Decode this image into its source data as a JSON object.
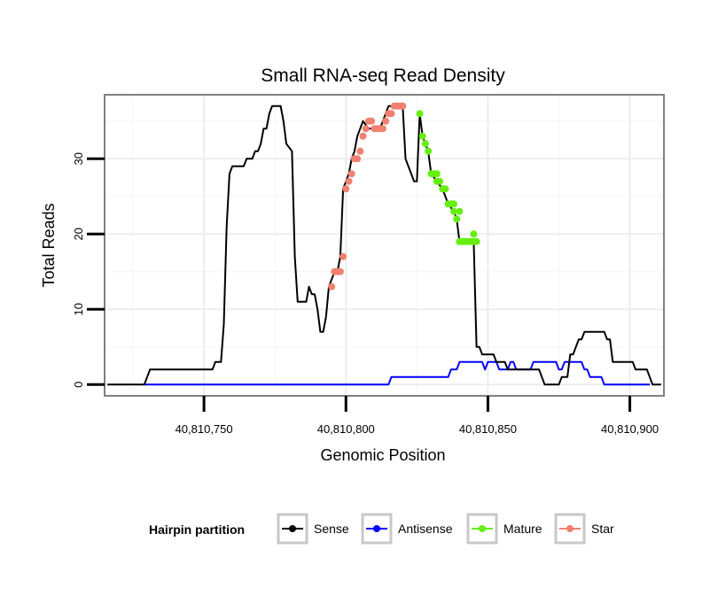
{
  "chart_data": {
    "type": "line",
    "title": "Small RNA-seq Read Density",
    "xlabel": "Genomic Position",
    "ylabel": "Total Reads",
    "xlim": [
      40810715,
      40810912
    ],
    "ylim": [
      -1.5,
      38.5
    ],
    "x_ticks": [
      40810750,
      40810800,
      40810850,
      40810900
    ],
    "x_tick_labels": [
      "40,810,750",
      "40,810,800",
      "40,810,850",
      "40,810,900"
    ],
    "y_ticks": [
      0,
      10,
      20,
      30
    ],
    "y_tick_labels": [
      "0",
      "10",
      "20",
      "30"
    ],
    "grid": true,
    "legend": {
      "title": "Hairpin partition",
      "position": "bottom",
      "entries": [
        "Sense",
        "Antisense",
        "Mature",
        "Star"
      ]
    },
    "series": [
      {
        "name": "Sense",
        "color": "#000000",
        "style": "line",
        "points": [
          [
            40810716,
            0
          ],
          [
            40810729,
            0
          ],
          [
            40810731,
            2
          ],
          [
            40810753,
            2
          ],
          [
            40810754,
            3
          ],
          [
            40810756,
            3
          ],
          [
            40810757,
            8
          ],
          [
            40810758,
            21
          ],
          [
            40810759,
            28
          ],
          [
            40810760,
            29
          ],
          [
            40810764,
            29
          ],
          [
            40810765,
            30
          ],
          [
            40810767,
            30
          ],
          [
            40810768,
            31
          ],
          [
            40810769,
            31
          ],
          [
            40810770,
            32
          ],
          [
            40810771,
            34
          ],
          [
            40810772,
            34
          ],
          [
            40810773,
            36
          ],
          [
            40810774,
            37
          ],
          [
            40810777,
            37
          ],
          [
            40810778,
            35
          ],
          [
            40810779,
            32
          ],
          [
            40810781,
            31
          ],
          [
            40810782,
            17
          ],
          [
            40810783,
            11
          ],
          [
            40810786,
            11
          ],
          [
            40810787,
            13
          ],
          [
            40810788,
            12
          ],
          [
            40810789,
            12
          ],
          [
            40810790,
            10
          ],
          [
            40810791,
            7
          ],
          [
            40810792,
            7
          ],
          [
            40810793,
            9
          ],
          [
            40810794,
            13
          ],
          [
            40810795,
            14
          ],
          [
            40810796,
            15
          ],
          [
            40810797,
            15
          ],
          [
            40810798,
            17
          ],
          [
            40810799,
            26
          ],
          [
            40810800,
            27
          ],
          [
            40810801,
            28
          ],
          [
            40810802,
            30
          ],
          [
            40810803,
            31
          ],
          [
            40810804,
            33
          ],
          [
            40810805,
            34
          ],
          [
            40810806,
            35
          ],
          [
            40810808,
            34
          ],
          [
            40810812,
            34
          ],
          [
            40810813,
            35
          ],
          [
            40810814,
            36
          ],
          [
            40810815,
            37
          ],
          [
            40810820,
            37
          ],
          [
            40810821,
            30
          ],
          [
            40810822,
            29
          ],
          [
            40810823,
            28
          ],
          [
            40810824,
            27
          ],
          [
            40810825,
            27
          ],
          [
            40810826,
            36
          ],
          [
            40810827,
            33
          ],
          [
            40810828,
            32
          ],
          [
            40810829,
            31
          ],
          [
            40810830,
            28
          ],
          [
            40810832,
            27
          ],
          [
            40810834,
            26
          ],
          [
            40810836,
            24
          ],
          [
            40810838,
            23
          ],
          [
            40810839,
            22
          ],
          [
            40810840,
            19
          ],
          [
            40810843,
            19
          ],
          [
            40810844,
            19
          ],
          [
            40810845,
            19
          ],
          [
            40810846,
            5
          ],
          [
            40810847,
            5
          ],
          [
            40810848,
            4
          ],
          [
            40810852,
            4
          ],
          [
            40810853,
            3
          ],
          [
            40810856,
            3
          ],
          [
            40810857,
            2
          ],
          [
            40810868,
            2
          ],
          [
            40810869,
            1
          ],
          [
            40810870,
            0
          ],
          [
            40810875,
            0
          ],
          [
            40810876,
            1
          ],
          [
            40810878,
            1
          ],
          [
            40810879,
            4
          ],
          [
            40810880,
            4
          ],
          [
            40810881,
            5
          ],
          [
            40810882,
            6
          ],
          [
            40810883,
            6
          ],
          [
            40810884,
            7
          ],
          [
            40810891,
            7
          ],
          [
            40810892,
            6
          ],
          [
            40810893,
            6
          ],
          [
            40810894,
            3
          ],
          [
            40810901,
            3
          ],
          [
            40810902,
            2
          ],
          [
            40810906,
            2
          ],
          [
            40810907,
            1
          ],
          [
            40810908,
            0
          ],
          [
            40810911,
            0
          ]
        ]
      },
      {
        "name": "Antisense",
        "color": "#0000ff",
        "style": "line",
        "points": [
          [
            40810729,
            0
          ],
          [
            40810815,
            0
          ],
          [
            40810816,
            1
          ],
          [
            40810836,
            1
          ],
          [
            40810837,
            2
          ],
          [
            40810839,
            2
          ],
          [
            40810840,
            3
          ],
          [
            40810848,
            3
          ],
          [
            40810849,
            2
          ],
          [
            40810850,
            3
          ],
          [
            40810853,
            3
          ],
          [
            40810854,
            2
          ],
          [
            40810857,
            2
          ],
          [
            40810858,
            3
          ],
          [
            40810859,
            3
          ],
          [
            40810860,
            2
          ],
          [
            40810865,
            2
          ],
          [
            40810866,
            3
          ],
          [
            40810874,
            3
          ],
          [
            40810875,
            2
          ],
          [
            40810876,
            2
          ],
          [
            40810877,
            3
          ],
          [
            40810883,
            3
          ],
          [
            40810884,
            2
          ],
          [
            40810885,
            2
          ],
          [
            40810886,
            1
          ],
          [
            40810890,
            1
          ],
          [
            40810891,
            0
          ],
          [
            40810907,
            0
          ]
        ]
      },
      {
        "name": "Mature",
        "color": "#66ee11",
        "style": "points",
        "points": [
          [
            40810826,
            36
          ],
          [
            40810827,
            33
          ],
          [
            40810828,
            32
          ],
          [
            40810829,
            31
          ],
          [
            40810830,
            28
          ],
          [
            40810831,
            28
          ],
          [
            40810832,
            27
          ],
          [
            40810832,
            28
          ],
          [
            40810833,
            27
          ],
          [
            40810834,
            26
          ],
          [
            40810835,
            26
          ],
          [
            40810836,
            24
          ],
          [
            40810837,
            24
          ],
          [
            40810838,
            24
          ],
          [
            40810838,
            23
          ],
          [
            40810839,
            22
          ],
          [
            40810840,
            23
          ],
          [
            40810840,
            19
          ],
          [
            40810841,
            19
          ],
          [
            40810842,
            19
          ],
          [
            40810843,
            19
          ],
          [
            40810844,
            19
          ],
          [
            40810845,
            20
          ],
          [
            40810845,
            19
          ],
          [
            40810846,
            19
          ]
        ]
      },
      {
        "name": "Star",
        "color": "#f08070",
        "style": "points",
        "points": [
          [
            40810795,
            13
          ],
          [
            40810796,
            15
          ],
          [
            40810797,
            15
          ],
          [
            40810798,
            15
          ],
          [
            40810799,
            17
          ],
          [
            40810800,
            26
          ],
          [
            40810801,
            27
          ],
          [
            40810802,
            28
          ],
          [
            40810803,
            30
          ],
          [
            40810804,
            30
          ],
          [
            40810805,
            31
          ],
          [
            40810806,
            33
          ],
          [
            40810807,
            34
          ],
          [
            40810808,
            35
          ],
          [
            40810809,
            35
          ],
          [
            40810810,
            34
          ],
          [
            40810811,
            34
          ],
          [
            40810812,
            34
          ],
          [
            40810813,
            34
          ],
          [
            40810814,
            35
          ],
          [
            40810815,
            36
          ],
          [
            40810816,
            36
          ],
          [
            40810817,
            37
          ],
          [
            40810818,
            37
          ],
          [
            40810819,
            37
          ],
          [
            40810820,
            37
          ]
        ]
      }
    ]
  }
}
